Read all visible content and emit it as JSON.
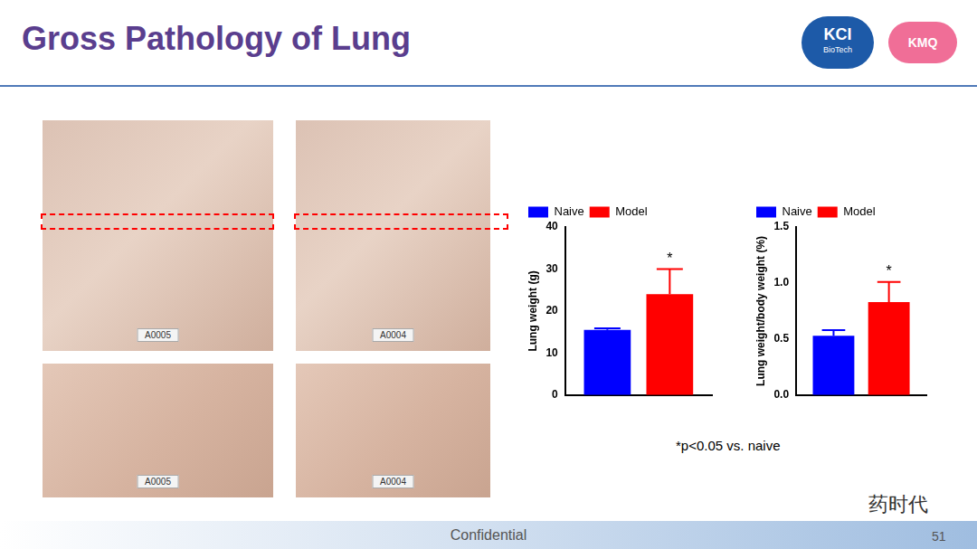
{
  "title": "Gross Pathology of Lung",
  "logos": [
    "KCI",
    "BioTech",
    "KMQ"
  ],
  "photos": [
    {
      "label": "A0005"
    },
    {
      "label": "A0004"
    },
    {
      "label": "A0005"
    },
    {
      "label": "A0004"
    }
  ],
  "chart_data": [
    {
      "type": "bar",
      "y_label": "Lung weight (g)",
      "categories": [
        null
      ],
      "series": [
        {
          "name": "Naive",
          "color": "#0000ff",
          "values": [
            15.5
          ],
          "errors": [
            0.4
          ]
        },
        {
          "name": "Model",
          "color": "#ff0000",
          "values": [
            24
          ],
          "errors": [
            6
          ]
        }
      ],
      "annotations": [
        {
          "series": "Model",
          "text": "*"
        }
      ],
      "ylim": [
        0,
        40
      ],
      "yticks": [
        0,
        10,
        20,
        30,
        40
      ],
      "grid": false,
      "legend": "top-left",
      "tick_labels": "y"
    },
    {
      "type": "bar",
      "y_label": "Lung weight/body weight (%)",
      "categories": [
        null
      ],
      "series": [
        {
          "name": "Naive",
          "color": "#0000ff",
          "values": [
            0.53
          ],
          "errors": [
            0.05
          ]
        },
        {
          "name": "Model",
          "color": "#ff0000",
          "values": [
            0.83
          ],
          "errors": [
            0.18
          ]
        }
      ],
      "annotations": [
        {
          "series": "Model",
          "text": "*"
        }
      ],
      "ylim": [
        0,
        1.5
      ],
      "yticks": [
        {
          "value": 0,
          "label": "0.0"
        },
        {
          "value": 0.5,
          "label": "0.5"
        },
        {
          "value": 1,
          "label": "1.0"
        },
        {
          "value": 1.5,
          "label": "1.5"
        }
      ],
      "grid": false,
      "legend": "top-left",
      "tick_labels": "y"
    }
  ],
  "footnote": "*p<0.05 vs. naive",
  "footer": "Confidential",
  "page": 51,
  "watermark": "药时代"
}
